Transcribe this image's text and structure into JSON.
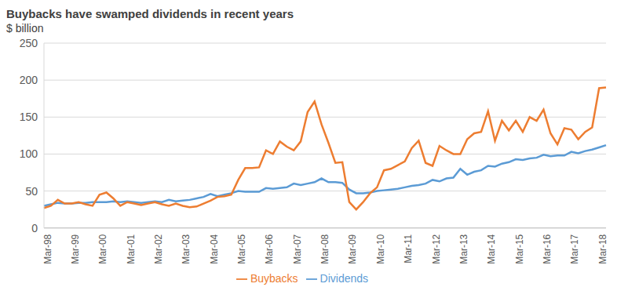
{
  "chart_data": {
    "type": "line",
    "title": "Buybacks have swamped dividends in recent years",
    "subtitle": "$ billion",
    "categories": [
      "Mar-98",
      null,
      null,
      null,
      "Mar-99",
      null,
      null,
      null,
      "Mar-00",
      null,
      null,
      null,
      "Mar-01",
      null,
      null,
      null,
      "Mar-02",
      null,
      null,
      null,
      "Mar-03",
      null,
      null,
      null,
      "Mar-04",
      null,
      null,
      null,
      "Mar-05",
      null,
      null,
      null,
      "Mar-06",
      null,
      null,
      null,
      "Mar-07",
      null,
      null,
      null,
      "Mar-08",
      null,
      null,
      null,
      "Mar-09",
      null,
      null,
      null,
      "Mar-10",
      null,
      null,
      null,
      "Mar-11",
      null,
      null,
      null,
      "Mar-12",
      null,
      null,
      null,
      "Mar-13",
      null,
      null,
      null,
      "Mar-14",
      null,
      null,
      null,
      "Mar-15",
      null,
      null,
      null,
      "Mar-16",
      null,
      null,
      null,
      "Mar-17",
      null,
      null,
      null,
      "Mar-18",
      null
    ],
    "series": [
      {
        "name": "Dividends",
        "color": "#5b9bd5",
        "values": [
          30,
          32,
          34,
          33,
          33,
          34,
          34,
          35,
          35,
          35,
          36,
          35,
          36,
          35,
          34,
          35,
          36,
          35,
          38,
          36,
          37,
          38,
          40,
          42,
          46,
          43,
          45,
          47,
          50,
          49,
          49,
          49,
          54,
          53,
          54,
          55,
          60,
          58,
          60,
          62,
          67,
          62,
          62,
          61,
          52,
          47,
          47,
          48,
          50,
          51,
          52,
          53,
          55,
          57,
          58,
          60,
          65,
          63,
          67,
          68,
          80,
          72,
          76,
          78,
          84,
          83,
          87,
          89,
          93,
          92,
          94,
          95,
          99,
          97,
          98,
          98,
          103,
          101,
          104,
          106,
          109,
          112
        ]
      },
      {
        "name": "Buybacks",
        "color": "#ed7d31",
        "values": [
          27,
          30,
          38,
          33,
          33,
          35,
          32,
          30,
          45,
          48,
          40,
          30,
          35,
          33,
          31,
          33,
          35,
          32,
          30,
          33,
          30,
          28,
          29,
          33,
          37,
          42,
          43,
          45,
          65,
          81,
          81,
          82,
          105,
          100,
          117,
          110,
          105,
          117,
          157,
          171,
          140,
          115,
          88,
          89,
          35,
          25,
          35,
          47,
          55,
          78,
          80,
          85,
          90,
          108,
          118,
          88,
          84,
          111,
          105,
          100,
          100,
          120,
          128,
          130,
          158,
          118,
          145,
          132,
          145,
          130,
          150,
          145,
          160,
          128,
          113,
          135,
          133,
          120,
          130,
          136,
          189,
          190
        ]
      }
    ],
    "ylim": [
      0,
      250
    ],
    "yticks": [
      0,
      50,
      100,
      150,
      200,
      250
    ],
    "grid": true,
    "legend": "bottom"
  }
}
